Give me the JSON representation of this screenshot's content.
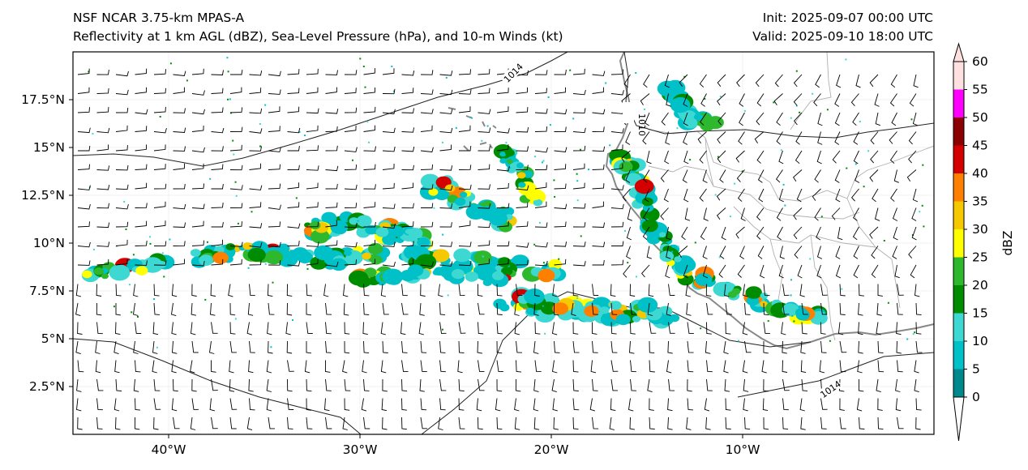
{
  "title": {
    "left_line1": "NSF NCAR 3.75-km MPAS-A",
    "left_line2": "Reflectivity at 1 km AGL (dBZ), Sea-Level Pressure (hPa), and 10-m Winds (kt)",
    "right_line1": "Init: 2025-09-07 00:00 UTC",
    "right_line2": "Valid: 2025-09-10 18:00 UTC"
  },
  "map": {
    "lon_range": [
      -45,
      0
    ],
    "lat_range": [
      0,
      20
    ],
    "x_ticks": [
      {
        "lon": -40,
        "label": "40°W"
      },
      {
        "lon": -30,
        "label": "30°W"
      },
      {
        "lon": -20,
        "label": "20°W"
      },
      {
        "lon": -10,
        "label": "10°W"
      }
    ],
    "y_ticks": [
      {
        "lat": 2.5,
        "label": "2.5°N"
      },
      {
        "lat": 5,
        "label": "5°N"
      },
      {
        "lat": 7.5,
        "label": "7.5°N"
      },
      {
        "lat": 10,
        "label": "10°N"
      },
      {
        "lat": 12.5,
        "label": "12.5°N"
      },
      {
        "lat": 15,
        "label": "15°N"
      },
      {
        "lat": 17.5,
        "label": "17.5°N"
      }
    ],
    "isobars": [
      {
        "label": "1014"
      },
      {
        "label": "1010"
      },
      {
        "label": "1014"
      }
    ],
    "isobar_color": "#222222",
    "coast_color": "#888888",
    "border_color": "#b0b0b0",
    "grid_color": "#f0f0f0"
  },
  "colorbar": {
    "label": "dBZ",
    "levels": [
      0,
      5,
      10,
      15,
      20,
      25,
      30,
      35,
      40,
      45,
      50,
      55,
      60
    ],
    "tick_labels": [
      "0",
      "5",
      "10",
      "15",
      "20",
      "25",
      "30",
      "35",
      "40",
      "45",
      "50",
      "55",
      "60"
    ],
    "colors": [
      "#00898c",
      "#00c0c8",
      "#3ed8d2",
      "#008c00",
      "#2db82d",
      "#ffff00",
      "#f5c800",
      "#ff8000",
      "#d40000",
      "#8b0000",
      "#ff00ff",
      "#ffe0e0"
    ],
    "under_color": "#ffffff",
    "over_color": "#ffe0e0"
  }
}
